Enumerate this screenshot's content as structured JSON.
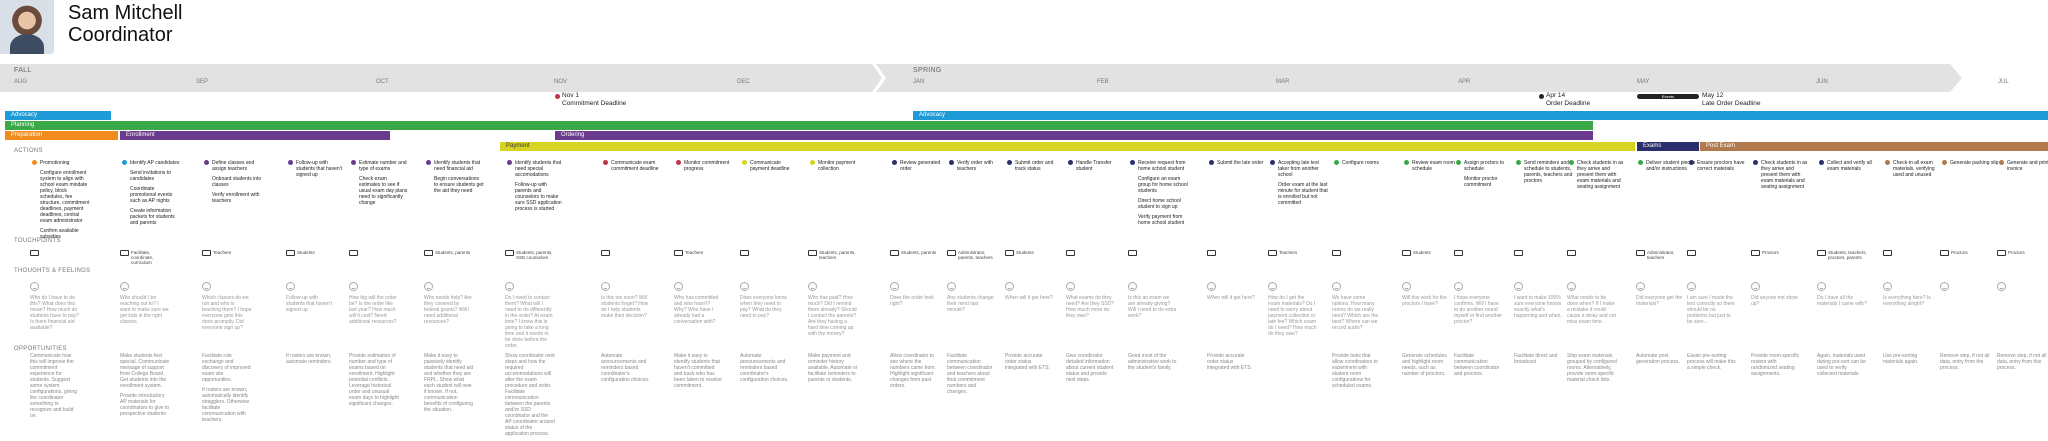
{
  "header": {
    "name_line1": "Sam Mitchell",
    "name_line2": "Coordinator"
  },
  "timeline": {
    "seasons": [
      "FALL",
      "SPRING"
    ],
    "months": [
      "AUG",
      "SEP",
      "OCT",
      "NOV",
      "DEC",
      "JAN",
      "FEB",
      "MAR",
      "APR",
      "MAY",
      "JUN",
      "JUL"
    ],
    "milestones": [
      {
        "date": "Nov 1",
        "label": "Commitment Deadline"
      },
      {
        "date": "Apr 14",
        "label": "Order Deadline"
      },
      {
        "date": "May 12",
        "label": "Late Order Deadline"
      }
    ],
    "events_tag": "Events"
  },
  "phases": {
    "advocacy": "Advocacy",
    "advocacy2": "Advocacy",
    "planning": "Planning",
    "preparation": "Preparation",
    "enrollment": "Enrollment",
    "ordering": "Ordering",
    "payment": "Payment",
    "exams": "Exams",
    "post_exam": "Post Exam"
  },
  "sections": {
    "actions": "ACTIONS",
    "touchpoints": "TOUCHPOINTS",
    "thoughts": "THOUGHTS & FEELINGS",
    "opportunities": "OPPORTUNITIES"
  },
  "colors": {
    "advocacy": "#1e9bd7",
    "planning": "#3aa847",
    "preparation": "#f08c1e",
    "enrollment": "#6a3a8c",
    "ordering": "#6a3a8c",
    "payment": "#d9d421",
    "exams": "#2a2f6b",
    "post_exam": "#b07a4e"
  },
  "actions": [
    {
      "color": "#f08c1e",
      "items": [
        "Promotioning",
        "Configure enrollment system to align with school exam mindate policy, block schedules, fee structure, commitment deadlines, payment deadlines, central exam administrator",
        "Confirm available subsidies"
      ]
    },
    {
      "color": "#1e9bd7",
      "items": [
        "Identify AP candidates",
        "Send invitations to candidates",
        "Coordinate promotional events such as AP nights",
        "Create information packets for students and parents"
      ]
    },
    {
      "color": "#6a3a8c",
      "items": [
        "Define classes and assign teachers",
        "Onboard students into classes",
        "Verify enrollment with teachers"
      ]
    },
    {
      "color": "#6a3a8c",
      "items": [
        "Follow-up with students that haven't signed up"
      ]
    },
    {
      "color": "#6a3a8c",
      "items": [
        "Estimate number and type of exams",
        "Check exam estimates to see if usual exam day plans need to significantly change"
      ]
    },
    {
      "color": "#6a3a8c",
      "items": [
        "Identify students that need financial aid",
        "Begin conversations to ensure students get the aid they need"
      ]
    },
    {
      "color": "#6a3a8c",
      "items": [
        "Identify students that need special accomodations",
        "Follow-up with parents and counselors to make sure SSD application process is started"
      ]
    },
    {
      "color": "#c0324a",
      "items": [
        "Communicate exam commitment deadline"
      ]
    },
    {
      "color": "#c0324a",
      "items": [
        "Monitor commitment progress"
      ]
    },
    {
      "color": "#d9d421",
      "items": [
        "Communicate payment deadline"
      ]
    },
    {
      "color": "#d9d421",
      "items": [
        "Monitor payment collection"
      ]
    },
    {
      "color": "#2a2f6b",
      "items": [
        "Review generated order"
      ]
    },
    {
      "color": "#2a2f6b",
      "items": [
        "Verify order with teachers"
      ]
    },
    {
      "color": "#2a2f6b",
      "items": [
        "Submit order and track status"
      ]
    },
    {
      "color": "#2a2f6b",
      "items": [
        "Handle Transfer student"
      ]
    },
    {
      "color": "#2a2f6b",
      "items": [
        "Receive request from home school student",
        "Configure an exam group for home school students",
        "Direct home school student to sign up",
        "Verify payment from home school student"
      ]
    },
    {
      "color": "#2a2f6b",
      "items": [
        "Submit the late order"
      ]
    },
    {
      "color": "#2a2f6b",
      "items": [
        "Accepting late test taker from another school",
        "Order exam at the last minute for student that is enrolled but not committed"
      ]
    },
    {
      "color": "#3aa847",
      "items": [
        "Configure rooms"
      ]
    },
    {
      "color": "#3aa847",
      "items": [
        "Review exam room schedule"
      ]
    },
    {
      "color": "#3aa847",
      "items": [
        "Assign proctors to schedule",
        "Monitor proctor commitment"
      ]
    },
    {
      "color": "#3aa847",
      "items": [
        "Send reminders and schedule to students, parents, teachers and proctors"
      ]
    },
    {
      "color": "#3aa847",
      "items": [
        "Check students in as they arrive and present them with exam materials and seating assignment"
      ]
    },
    {
      "color": "#3aa847",
      "items": [
        "Deliver student pieces and/or instructions"
      ]
    },
    {
      "color": "#2a2f6b",
      "items": [
        "Ensure proctors have correct materials"
      ]
    },
    {
      "color": "#2a2f6b",
      "items": [
        "Check students in as they arrive and present them with exam materials and seating assignment"
      ]
    },
    {
      "color": "#2a2f6b",
      "items": [
        "Collect and verify all exam materials"
      ]
    },
    {
      "color": "#b07a4e",
      "items": [
        "Check-in all exam materials, verifying used and unused"
      ]
    },
    {
      "color": "#b07a4e",
      "items": [
        "Generate packing slip"
      ]
    },
    {
      "color": "#b07a4e",
      "items": [
        "Generate and print invoice"
      ]
    }
  ],
  "touchpoints": [
    "",
    "Facilitate, coordinate, curriculum",
    "Teachers",
    "Students",
    "",
    "Students, parents",
    "Students, parents, SSD counselors",
    "",
    "Teachers",
    "",
    "Students, parents, teachers",
    "Students, parents",
    "Administrator, parents, teachers",
    "Students",
    "",
    "",
    "",
    "Teachers",
    "",
    "Students",
    "",
    "",
    "",
    "Administrator, teachers",
    "",
    "Proctors",
    "Students, teachers, proctors, parents",
    "",
    "Proctors",
    "Proctors"
  ],
  "thoughts": [
    "Who do I have to do this? What does this mean? How much do students have to pay? Is there financial aid available?",
    "Who should I be reaching out to? I want to make sure we get kids in the right classes.",
    "Which classes do we run and who is teaching them? I hope everyone gets this done promptly. Did everyone sign up?",
    "Follow-up with students that haven't signed up",
    "How big will the order be? Is the order like last year? How much will it cost? Need additional resources?",
    "Who needs help? Are they covered by federal grants? Will I need additional resources?",
    "Do I need to contact them? What will I need to do differently in the order? At exam time? I know this is going to take a long time and it needs to be done before the order.",
    "Is this too soon? Will students forget? How do I help students make their decision?",
    "Who has committed and who hasn't? Why? Who have I already had a conversation with?",
    "Does everyone know when they need to pay? What do they need to pay?",
    "Who has paid? How much? Did I remind them already? Should I contact the parents? Are they having a hard time coming up with the money?",
    "Does the order look right?",
    "Any students change their mind last minute?",
    "When will it get here?",
    "What exams do they need? Are they SSD? How much more do they owe?",
    "Is this an exam we are already giving? Will I need to do extra work?",
    "When will it get here?",
    "How do I get the exam materials? Do I need to worry about payment collection or late fee? Which exam do I need? How much do they owe?",
    "We have some options. How many rooms do we really need? Which are the best? Where can we record audio?",
    "Will this work for the proctors I have?",
    "I hope everyone confirms. Will I have to do another round myself or find another proctor?",
    "I want to make 100% sure everyone knows exactly what's happening and when.",
    "What needs to be done when? If I make a mistake it could cause a delay and not miss exam time.",
    "Did everyone get the materials?",
    "I am sure I made the test correctly so there should be no problems but just to be sure...",
    "Did anyone not show up?",
    "Do I have all the materials I came with?",
    "Is everything here? Is everything alright?",
    "",
    ""
  ],
  "opportunities": [
    [
      "Communicate how this will improve the commitment experience for students. Suggest some system configurations, giving the coordinator something to recognize and build on."
    ],
    [
      "Make students feel special. Communicate message of support from College Board. Get students into the enrollment system.",
      "Provide introductory AP materials for coordinators to give to prospective students"
    ],
    [
      "Facilitate role exchange and discovery of improved exam site opportunities.",
      "If rosters are known, automatically identify stragglers. Otherwise facilitate communication with teachers."
    ],
    [
      "If rosters are known, automate reminders."
    ],
    [
      "Provide estimation of number and type of exams based on enrollment. Highlight potential conflicts. Leverage historical order and unusual exam days to highlight significant changes."
    ],
    [
      "Make it easy to passively identify students that need aid and whether they are FRPL. Show what each student will owe if known. If not, communication benefits of configuring the situation."
    ],
    [
      "Show coordinator next steps and how the required accommodations will alter the exam procedure and order. Facilitate communication between the parents and/or SSD coordinator and the AP coordinator around status of the application process."
    ],
    [
      "Automate announcements and reminders based coordinator's configuration choices."
    ],
    [
      "Make it easy to identify students that haven't committed and track who has been taken to resolve commitment."
    ],
    [
      "Automate announcements and reminders based coordinator's configuration choices."
    ],
    [
      "Make payment and reminder history available. Automate or facilitate reminders to parents or students."
    ],
    [
      "Allow coordinator to see where the numbers came from. Highlight significant changes from past orders."
    ],
    [
      "Facilitate communication between coordinator and teachers about final commitment numbers and changes."
    ],
    [
      "Provide accurate order status integrated with ETS."
    ],
    [
      "Give coordinator detailed information about current student status and provide next steps."
    ],
    [
      "Good most of the administrative work to the student's family."
    ],
    [
      "Provide accurate order status integrated with ETS."
    ],
    [
      ""
    ],
    [
      "Provide tools that allow coordinators to experiment with student room configurations for scheduled exams."
    ],
    [
      "Generate schedules and highlight room needs, such as number of proctors."
    ],
    [
      "Facilitate communication between coordinator and proctors."
    ],
    [
      "Facilitate direct and broadcast"
    ],
    [
      "Ship exam materials grouped by configured rooms. Alternatively, provide room-specific material check lists."
    ],
    [
      "Automate post generation process."
    ],
    [
      "Easier pre-sorting process will make this a simple check."
    ],
    [
      "Provide room-specific rosters with randomized seating assignments."
    ],
    [
      "Again, materials used during pre-sort can be used to verify collected materials."
    ],
    [
      "Use pre-sorting materials again."
    ],
    [
      "Remove step, if not all data, entry from the process."
    ],
    [
      "Remove step, if not all data, entry from this process."
    ]
  ]
}
